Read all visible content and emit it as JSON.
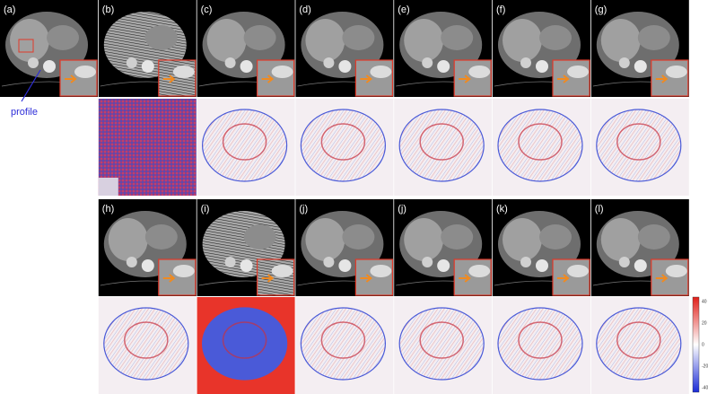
{
  "panels_top": [
    "(a)",
    "(b)",
    "(c)",
    "(d)",
    "(e)",
    "(f)",
    "(g)"
  ],
  "panels_bottom": [
    "(h)",
    "(i)",
    "(j)",
    "(j)",
    "(k)",
    "(l)"
  ],
  "annotation": "profile",
  "colorbar": {
    "ticks": [
      "40",
      "20",
      "0",
      "-20",
      "-40"
    ]
  }
}
